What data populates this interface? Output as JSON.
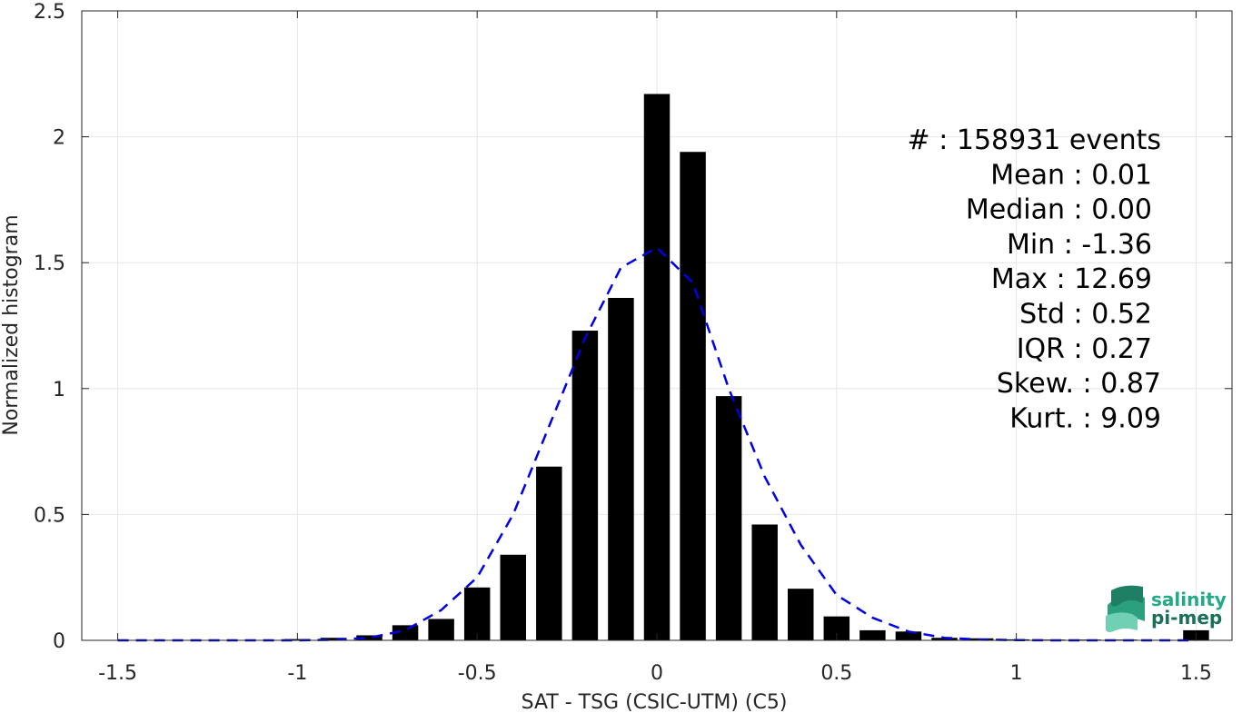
{
  "chart_data": {
    "type": "bar",
    "xlabel": "SAT - TSG (CSIC-UTM) (C5)",
    "ylabel": "Normalized histogram",
    "xlim": [
      -1.6,
      1.6
    ],
    "ylim": [
      0,
      2.5
    ],
    "x_ticks": [
      "-1.5",
      "-1",
      "-0.5",
      "0",
      "0.5",
      "1",
      "1.5"
    ],
    "y_ticks": [
      "0",
      "0.5",
      "1",
      "1.5",
      "2",
      "2.5"
    ],
    "grid": true,
    "bins": [
      {
        "x": -1.5,
        "value": 0.0
      },
      {
        "x": -1.4,
        "value": 0.0
      },
      {
        "x": -1.3,
        "value": 0.0
      },
      {
        "x": -1.2,
        "value": 0.0
      },
      {
        "x": -1.1,
        "value": 0.0
      },
      {
        "x": -1.0,
        "value": 0.005
      },
      {
        "x": -0.9,
        "value": 0.01
      },
      {
        "x": -0.8,
        "value": 0.02
      },
      {
        "x": -0.7,
        "value": 0.06
      },
      {
        "x": -0.6,
        "value": 0.085
      },
      {
        "x": -0.5,
        "value": 0.21
      },
      {
        "x": -0.4,
        "value": 0.34
      },
      {
        "x": -0.3,
        "value": 0.69
      },
      {
        "x": -0.2,
        "value": 1.23
      },
      {
        "x": -0.1,
        "value": 1.36
      },
      {
        "x": 0.0,
        "value": 2.17
      },
      {
        "x": 0.1,
        "value": 1.94
      },
      {
        "x": 0.2,
        "value": 0.97
      },
      {
        "x": 0.3,
        "value": 0.46
      },
      {
        "x": 0.4,
        "value": 0.205
      },
      {
        "x": 0.5,
        "value": 0.095
      },
      {
        "x": 0.6,
        "value": 0.04
      },
      {
        "x": 0.7,
        "value": 0.035
      },
      {
        "x": 0.8,
        "value": 0.01
      },
      {
        "x": 0.9,
        "value": 0.008
      },
      {
        "x": 1.0,
        "value": 0.004
      },
      {
        "x": 1.1,
        "value": 0.003
      },
      {
        "x": 1.2,
        "value": 0.003
      },
      {
        "x": 1.3,
        "value": 0.003
      },
      {
        "x": 1.4,
        "value": 0.002
      },
      {
        "x": 1.5,
        "value": 0.04
      }
    ],
    "bar_width": 0.072,
    "fit_curve": {
      "style": "dashed",
      "color": "#0000e6",
      "x": [
        -1.5,
        -1.4,
        -1.3,
        -1.2,
        -1.1,
        -1.0,
        -0.9,
        -0.8,
        -0.7,
        -0.6,
        -0.5,
        -0.4,
        -0.3,
        -0.2,
        -0.1,
        0.0,
        0.1,
        0.2,
        0.3,
        0.4,
        0.5,
        0.6,
        0.7,
        0.8,
        0.9,
        1.0,
        1.1,
        1.2,
        1.3,
        1.4,
        1.5
      ],
      "y": [
        0.0,
        0.0,
        0.0,
        0.0,
        0.0,
        0.0,
        0.002,
        0.01,
        0.04,
        0.12,
        0.25,
        0.5,
        0.85,
        1.2,
        1.48,
        1.56,
        1.42,
        1.0,
        0.65,
        0.38,
        0.18,
        0.09,
        0.035,
        0.01,
        0.003,
        0.001,
        0.0,
        0.0,
        0.0,
        0.0,
        0.0
      ]
    },
    "bar_color": "#000000"
  },
  "stats": [
    "#  : 158931 events",
    "Mean : 0.01",
    "Median : 0.00",
    "Min : -1.36",
    "Max : 12.69",
    "Std : 0.52",
    "IQR : 0.27",
    "Skew. : 0.87",
    "Kurt. : 9.09"
  ],
  "logo": {
    "line1": "salinity",
    "line2": "pi-mep",
    "color1": "#22aa88",
    "color2": "#1a6f5a"
  }
}
